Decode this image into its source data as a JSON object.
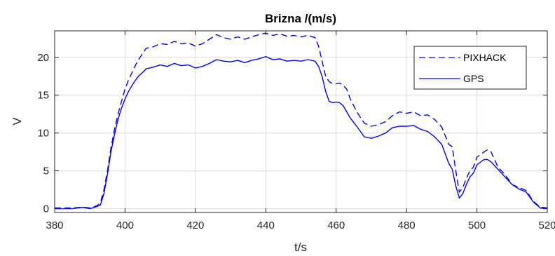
{
  "chart_data": {
    "type": "line",
    "title": "Brizna /(m/s)",
    "xlabel": "t/s",
    "ylabel": "V",
    "xlim": [
      380,
      520
    ],
    "ylim": [
      -0.5,
      23.5
    ],
    "x_ticks": [
      380,
      400,
      420,
      440,
      460,
      480,
      500,
      520
    ],
    "y_ticks": [
      0,
      5,
      10,
      15,
      20
    ],
    "grid": true,
    "legend_position": "top-right",
    "series": [
      {
        "name": "PIXHACK",
        "style": "dashed",
        "color": "#0000ff",
        "points": [
          [
            380,
            0.1
          ],
          [
            385,
            0.1
          ],
          [
            388,
            0.2
          ],
          [
            390,
            0.1
          ],
          [
            392,
            0.4
          ],
          [
            393,
            0.8
          ],
          [
            394,
            2.5
          ],
          [
            395,
            5.0
          ],
          [
            396,
            8.0
          ],
          [
            397,
            10.5
          ],
          [
            398,
            12.5
          ],
          [
            399,
            14.2
          ],
          [
            400,
            15.8
          ],
          [
            401,
            17.0
          ],
          [
            402,
            18.0
          ],
          [
            403,
            19.0
          ],
          [
            404,
            19.8
          ],
          [
            405,
            20.5
          ],
          [
            406,
            21.2
          ],
          [
            408,
            21.4
          ],
          [
            410,
            21.8
          ],
          [
            412,
            21.7
          ],
          [
            414,
            22.1
          ],
          [
            416,
            21.8
          ],
          [
            418,
            21.9
          ],
          [
            420,
            21.5
          ],
          [
            422,
            21.8
          ],
          [
            424,
            22.4
          ],
          [
            426,
            23.0
          ],
          [
            428,
            22.6
          ],
          [
            430,
            22.4
          ],
          [
            432,
            22.7
          ],
          [
            434,
            22.4
          ],
          [
            436,
            22.7
          ],
          [
            438,
            23.0
          ],
          [
            440,
            23.2
          ],
          [
            442,
            22.9
          ],
          [
            444,
            23.1
          ],
          [
            446,
            22.8
          ],
          [
            448,
            22.9
          ],
          [
            450,
            22.7
          ],
          [
            452,
            22.9
          ],
          [
            454,
            22.6
          ],
          [
            455,
            21.5
          ],
          [
            456,
            19.5
          ],
          [
            457,
            17.5
          ],
          [
            458,
            16.8
          ],
          [
            459,
            16.5
          ],
          [
            460,
            16.5
          ],
          [
            461,
            16.6
          ],
          [
            462,
            16.3
          ],
          [
            463,
            15.8
          ],
          [
            464,
            14.5
          ],
          [
            466,
            12.7
          ],
          [
            468,
            11.3
          ],
          [
            470,
            10.9
          ],
          [
            472,
            11.1
          ],
          [
            474,
            11.5
          ],
          [
            476,
            12.3
          ],
          [
            478,
            12.8
          ],
          [
            480,
            12.6
          ],
          [
            482,
            12.8
          ],
          [
            484,
            12.3
          ],
          [
            486,
            12.4
          ],
          [
            488,
            11.8
          ],
          [
            490,
            10.8
          ],
          [
            492,
            8.5
          ],
          [
            493,
            8.2
          ],
          [
            494,
            5.0
          ],
          [
            495,
            2.2
          ],
          [
            496,
            2.8
          ],
          [
            497,
            4.0
          ],
          [
            498,
            5.0
          ],
          [
            499,
            5.5
          ],
          [
            500,
            6.8
          ],
          [
            502,
            7.5
          ],
          [
            503,
            7.8
          ],
          [
            504,
            7.5
          ],
          [
            506,
            5.5
          ],
          [
            508,
            4.5
          ],
          [
            510,
            3.2
          ],
          [
            512,
            2.8
          ],
          [
            514,
            2.4
          ],
          [
            516,
            1.0
          ],
          [
            518,
            0.2
          ],
          [
            520,
            0.1
          ]
        ]
      },
      {
        "name": "GPS",
        "style": "solid",
        "color": "#0000ff",
        "points": [
          [
            380,
            0.0
          ],
          [
            385,
            0.0
          ],
          [
            388,
            0.2
          ],
          [
            390,
            0.0
          ],
          [
            392,
            0.3
          ],
          [
            393,
            0.5
          ],
          [
            394,
            2.0
          ],
          [
            395,
            4.5
          ],
          [
            396,
            7.5
          ],
          [
            397,
            9.8
          ],
          [
            398,
            11.8
          ],
          [
            399,
            13.3
          ],
          [
            400,
            14.5
          ],
          [
            401,
            15.5
          ],
          [
            402,
            16.3
          ],
          [
            403,
            17.0
          ],
          [
            404,
            17.6
          ],
          [
            405,
            18.0
          ],
          [
            406,
            18.5
          ],
          [
            408,
            18.7
          ],
          [
            410,
            19.0
          ],
          [
            412,
            18.8
          ],
          [
            414,
            19.2
          ],
          [
            416,
            18.9
          ],
          [
            418,
            19.0
          ],
          [
            420,
            18.6
          ],
          [
            422,
            18.8
          ],
          [
            424,
            19.2
          ],
          [
            426,
            19.7
          ],
          [
            428,
            19.5
          ],
          [
            430,
            19.4
          ],
          [
            432,
            19.6
          ],
          [
            434,
            19.3
          ],
          [
            436,
            19.6
          ],
          [
            438,
            19.8
          ],
          [
            440,
            20.1
          ],
          [
            442,
            19.7
          ],
          [
            444,
            19.8
          ],
          [
            446,
            19.5
          ],
          [
            448,
            19.6
          ],
          [
            450,
            19.5
          ],
          [
            452,
            19.7
          ],
          [
            454,
            19.5
          ],
          [
            455,
            18.8
          ],
          [
            456,
            17.5
          ],
          [
            457,
            15.5
          ],
          [
            458,
            14.2
          ],
          [
            459,
            14.0
          ],
          [
            460,
            14.1
          ],
          [
            461,
            14.0
          ],
          [
            462,
            13.6
          ],
          [
            463,
            12.8
          ],
          [
            464,
            12.0
          ],
          [
            466,
            10.8
          ],
          [
            468,
            9.5
          ],
          [
            470,
            9.3
          ],
          [
            472,
            9.6
          ],
          [
            474,
            10.0
          ],
          [
            476,
            10.7
          ],
          [
            478,
            10.9
          ],
          [
            480,
            10.9
          ],
          [
            482,
            11.0
          ],
          [
            484,
            10.5
          ],
          [
            486,
            10.2
          ],
          [
            488,
            9.5
          ],
          [
            490,
            8.5
          ],
          [
            492,
            6.0
          ],
          [
            493,
            5.2
          ],
          [
            494,
            3.0
          ],
          [
            495,
            1.4
          ],
          [
            496,
            2.0
          ],
          [
            497,
            3.2
          ],
          [
            498,
            4.2
          ],
          [
            499,
            4.7
          ],
          [
            500,
            5.8
          ],
          [
            502,
            6.5
          ],
          [
            503,
            6.5
          ],
          [
            504,
            6.2
          ],
          [
            506,
            5.2
          ],
          [
            508,
            4.2
          ],
          [
            510,
            3.2
          ],
          [
            512,
            2.6
          ],
          [
            514,
            2.2
          ],
          [
            516,
            0.9
          ],
          [
            518,
            0.1
          ],
          [
            520,
            0.0
          ]
        ]
      }
    ]
  }
}
